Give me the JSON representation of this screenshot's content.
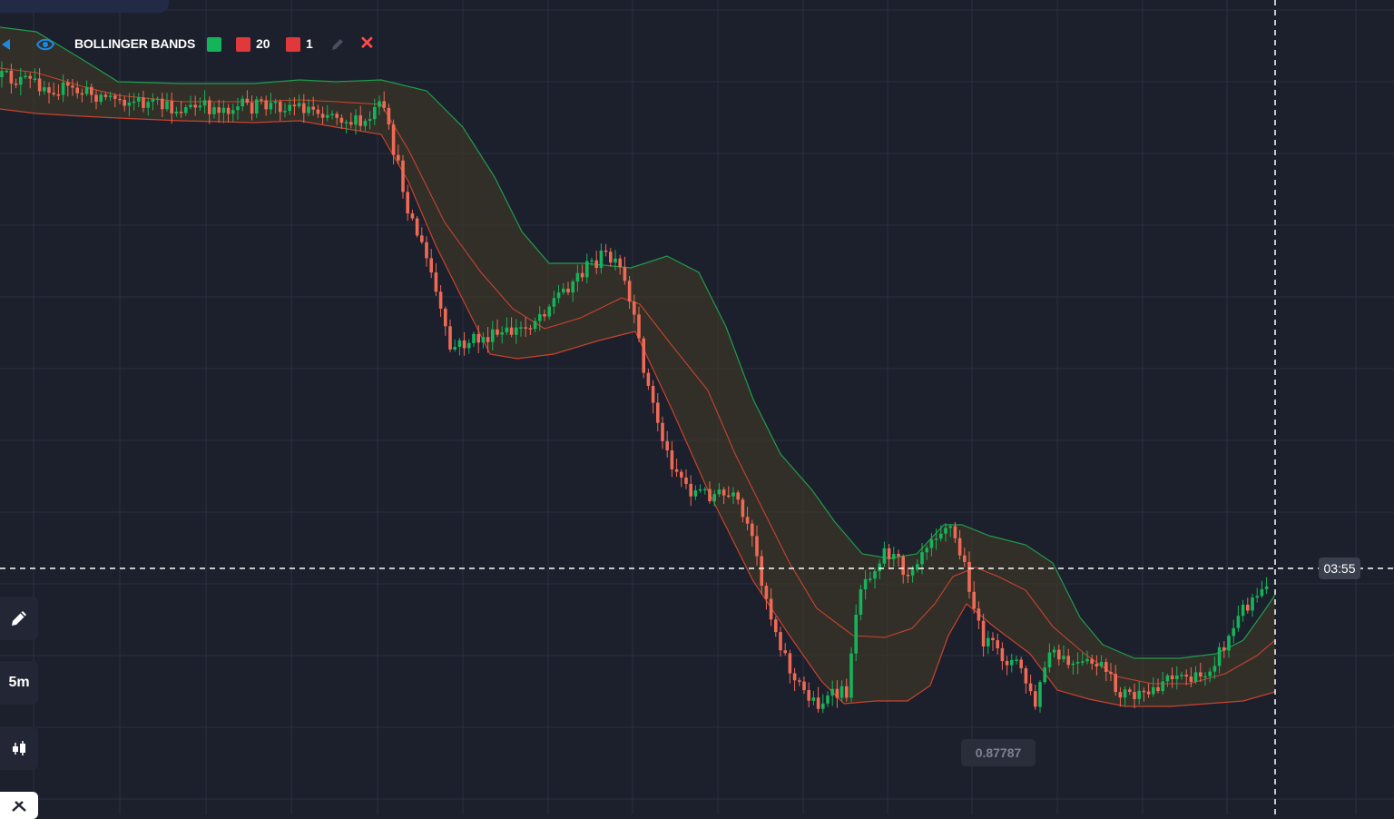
{
  "indicator": {
    "name": "BOLLINGER BANDS",
    "period": "20",
    "deviation": "1",
    "upper_color": "#16b45a",
    "middle_color": "#e0383b",
    "lower_color": "#e0383b",
    "visible": true
  },
  "toolbar": {
    "draw_icon": "pencil-icon",
    "timeframe": "5m",
    "chart_type_icon": "candles-icon",
    "extra_icon": "tools-icon"
  },
  "time_remaining": "03:55",
  "price_label": "0.87787",
  "colors": {
    "background": "#1c1f2c",
    "grid": "#2c3040",
    "bull": "#16b45a",
    "bear": "#ef6a55",
    "band_fill": "#3a3627",
    "upper_band": "#16a34a",
    "lower_band": "#d9412c"
  },
  "chart_data": {
    "type": "candlestick",
    "title": "",
    "series": [
      {
        "name": "BOLLINGER BANDS",
        "indicator": "bollinger",
        "period": 20,
        "deviation": 1
      }
    ],
    "grid": true
  }
}
